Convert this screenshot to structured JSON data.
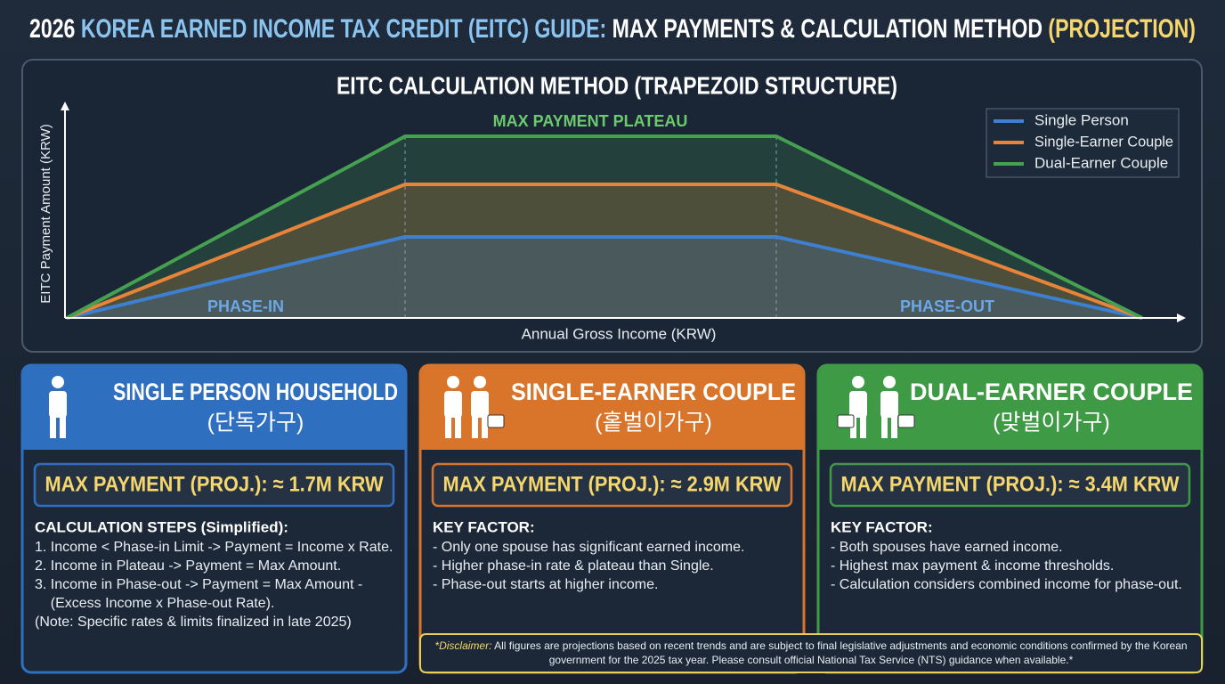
{
  "header": {
    "title": [
      {
        "text": "2026 ",
        "color": "#ffffff"
      },
      {
        "text": "KOREA EARNED INCOME TAX CREDIT (EITC) GUIDE:",
        "color": "#8cc4f0"
      },
      {
        "text": " MAX PAYMENTS & CALCULATION METHOD ",
        "color": "#ffffff"
      },
      {
        "text": "(PROJECTION)",
        "color": "#f5d76e"
      }
    ]
  },
  "diagram": {
    "title": "EITC CALCULATION METHOD (TRAPEZOID STRUCTURE)",
    "y_label": "EITC Payment Amount (KRW)",
    "x_label": "Annual Gross Income (KRW)",
    "plateau_label": "MAX PAYMENT PLATEAU",
    "phase_in_label": "PHASE-IN",
    "phase_out_label": "PHASE-OUT",
    "legend": [
      {
        "name": "Single Person",
        "color": "#3d7fd0"
      },
      {
        "name": "Single-Earner Couple",
        "color": "#e8843a"
      },
      {
        "name": "Dual-Earner Couple",
        "color": "#45a050"
      }
    ]
  },
  "panels": [
    {
      "title": "SINGLE PERSON HOUSEHOLD",
      "subtitle": "(단독가구)",
      "max_payment": "MAX PAYMENT (PROJ.): ≈ 1.7M KRW",
      "heading": "CALCULATION STEPS (Simplified):",
      "lines": [
        "1. Income < Phase-in Limit -> Payment = Income x Rate.",
        "2. Income in Plateau -> Payment = Max Amount.",
        "3. Income in Phase-out -> Payment = Max Amount -",
        "    (Excess Income x Phase-out Rate).",
        "(Note: Specific rates & limits finalized in late 2025)"
      ],
      "color": "#2f6fc0"
    },
    {
      "title": "SINGLE-EARNER COUPLE",
      "subtitle": "(홑벌이가구)",
      "max_payment": "MAX PAYMENT (PROJ.): ≈ 2.9M KRW",
      "heading": "KEY FACTOR:",
      "lines": [
        "- Only one spouse has significant earned income.",
        "- Higher phase-in rate & plateau than Single.",
        "- Phase-out starts at higher income."
      ],
      "color": "#d9752a"
    },
    {
      "title": "DUAL-EARNER COUPLE",
      "subtitle": "(맞벌이가구)",
      "max_payment": "MAX PAYMENT (PROJ.): ≈ 3.4M KRW",
      "heading": "KEY FACTOR:",
      "lines": [
        "- Both spouses have earned income.",
        "- Highest max payment & income thresholds.",
        "- Calculation considers combined income for phase-out."
      ],
      "color": "#3f9a45"
    }
  ],
  "disclaimer": {
    "label": "*Disclaimer:",
    "lines": [
      " All figures are projections based on recent trends and are subject to final legislative adjustments and economic conditions confirmed by the Korean",
      "government for the 2025 tax year. Please consult official National Tax Service (NTS) guidance when available.*"
    ]
  }
}
